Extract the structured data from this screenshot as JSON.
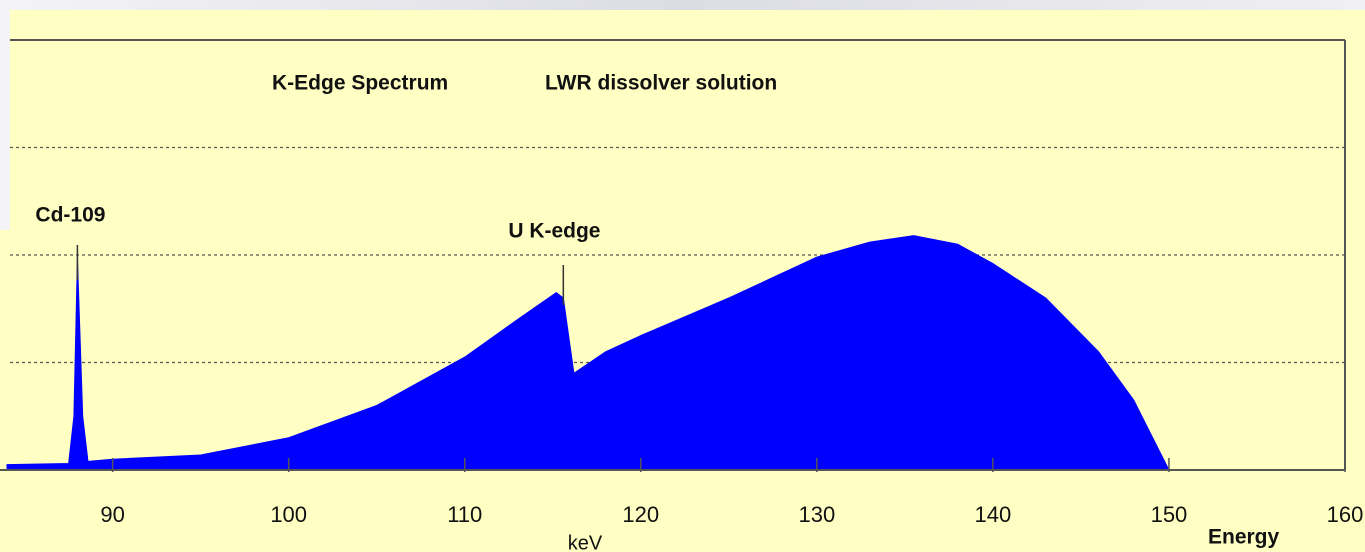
{
  "chart_data": {
    "type": "area",
    "title": "K-Edge Spectrum",
    "subtitle": "LWR dissolver solution",
    "x_label": "keV",
    "x_label_secondary": "Energy",
    "color": "#0000ff",
    "x": [
      84,
      87.5,
      87.8,
      88.0,
      88.3,
      88.6,
      90,
      95,
      100,
      105,
      110,
      113,
      115.2,
      115.6,
      116.2,
      118,
      120,
      125,
      130,
      133,
      135.5,
      138,
      140,
      143,
      146,
      148,
      150
    ],
    "values": [
      0.05,
      0.06,
      0.5,
      1.97,
      0.5,
      0.08,
      0.1,
      0.14,
      0.3,
      0.6,
      1.05,
      1.4,
      1.65,
      1.6,
      0.9,
      1.1,
      1.25,
      1.6,
      1.98,
      2.12,
      2.18,
      2.1,
      1.92,
      1.6,
      1.1,
      0.65,
      0
    ],
    "annotations": [
      {
        "text": "Cd-109",
        "x": 88.0
      },
      {
        "text": "U K-edge",
        "x": 115.6
      }
    ],
    "xlim": [
      84,
      160
    ],
    "xticks": [
      90,
      100,
      110,
      120,
      130,
      140,
      150,
      160
    ],
    "ylim": [
      0,
      4
    ],
    "yticks": [
      1,
      2,
      3
    ],
    "grid": true
  }
}
